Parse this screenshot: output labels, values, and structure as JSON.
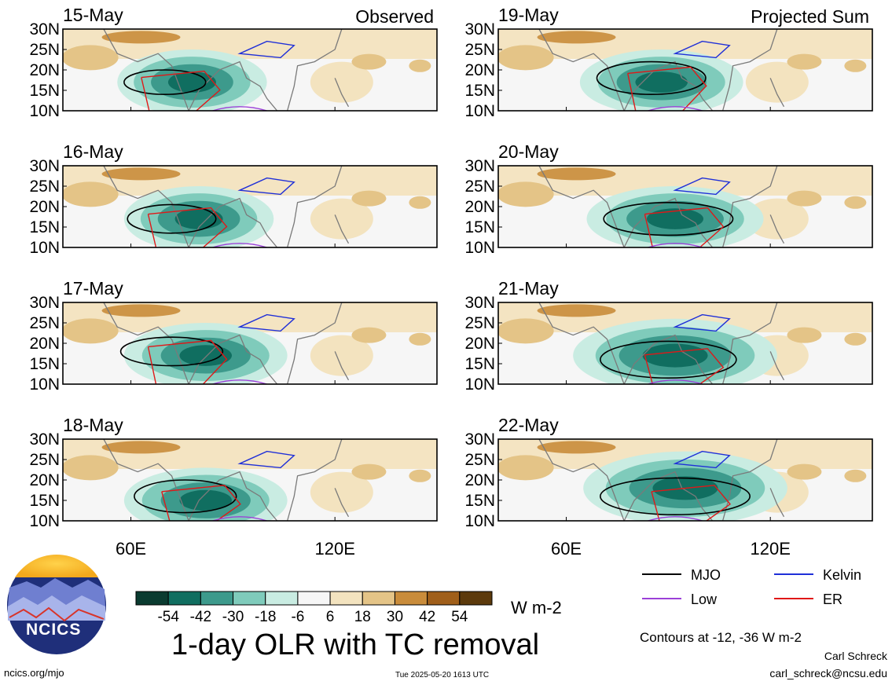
{
  "chart_data": {
    "type": "heatmap",
    "title": "1-day OLR with TC removal",
    "units": "W m-2",
    "x_ticks": [
      "60E",
      "120E"
    ],
    "y_ticks": [
      "30N",
      "25N",
      "20N",
      "15N",
      "10N"
    ],
    "xlim": [
      40,
      150
    ],
    "ylim": [
      10,
      30
    ],
    "columns": [
      {
        "name": "Observed",
        "dates": [
          "15-May",
          "16-May",
          "17-May",
          "18-May"
        ]
      },
      {
        "name": "Projected Sum",
        "dates": [
          "19-May",
          "20-May",
          "21-May",
          "22-May"
        ]
      }
    ],
    "colorbar": {
      "tick_labels": [
        "-54",
        "-42",
        "-30",
        "-18",
        "-6",
        "6",
        "18",
        "30",
        "42",
        "54"
      ],
      "colors": [
        "#0a3b30",
        "#106e60",
        "#3d9a8c",
        "#7fcbbb",
        "#c9ece2",
        "#f6f6f6",
        "#f3e3bf",
        "#e4c487",
        "#c98c3b",
        "#a05f1a",
        "#5c3a0c"
      ]
    },
    "legend": [
      {
        "label": "MJO",
        "color": "#000000"
      },
      {
        "label": "Kelvin",
        "color": "#1f2fd8"
      },
      {
        "label": "Low",
        "color": "#9b40d8"
      },
      {
        "label": "ER",
        "color": "#e01818"
      }
    ],
    "contour_note": "Contours at -12, -36 W m-2",
    "approx_fields": [
      {
        "date": "15-May",
        "neg_center": [
          78,
          17
        ],
        "neg_extent": [
          22,
          8
        ],
        "mjo": [
          70,
          17,
          24,
          6
        ]
      },
      {
        "date": "16-May",
        "neg_center": [
          80,
          17
        ],
        "neg_extent": [
          22,
          8
        ],
        "mjo": [
          72,
          17,
          26,
          7
        ]
      },
      {
        "date": "17-May",
        "neg_center": [
          82,
          17
        ],
        "neg_extent": [
          24,
          8
        ],
        "mjo": [
          72,
          18,
          30,
          7
        ]
      },
      {
        "date": "18-May",
        "neg_center": [
          82,
          15
        ],
        "neg_extent": [
          24,
          8
        ],
        "mjo": [
          76,
          16,
          30,
          8
        ]
      },
      {
        "date": "19-May",
        "neg_center": [
          88,
          17
        ],
        "neg_extent": [
          24,
          8
        ],
        "mjo": [
          85,
          18,
          32,
          8
        ]
      },
      {
        "date": "20-May",
        "neg_center": [
          92,
          17
        ],
        "neg_extent": [
          26,
          8
        ],
        "mjo": [
          90,
          17,
          38,
          8
        ]
      },
      {
        "date": "21-May",
        "neg_center": [
          92,
          17
        ],
        "neg_extent": [
          30,
          9
        ],
        "mjo": [
          90,
          16,
          40,
          9
        ]
      },
      {
        "date": "22-May",
        "neg_center": [
          95,
          18
        ],
        "neg_extent": [
          30,
          9
        ],
        "mjo": [
          92,
          16,
          44,
          9
        ]
      }
    ]
  },
  "footer": {
    "logo_text": "NCICS",
    "website": "ncics.org/mjo",
    "timestamp": "Tue 2025-05-20 1613 UTC",
    "author": "Carl Schreck",
    "email": "carl_schreck@ncsu.edu"
  }
}
